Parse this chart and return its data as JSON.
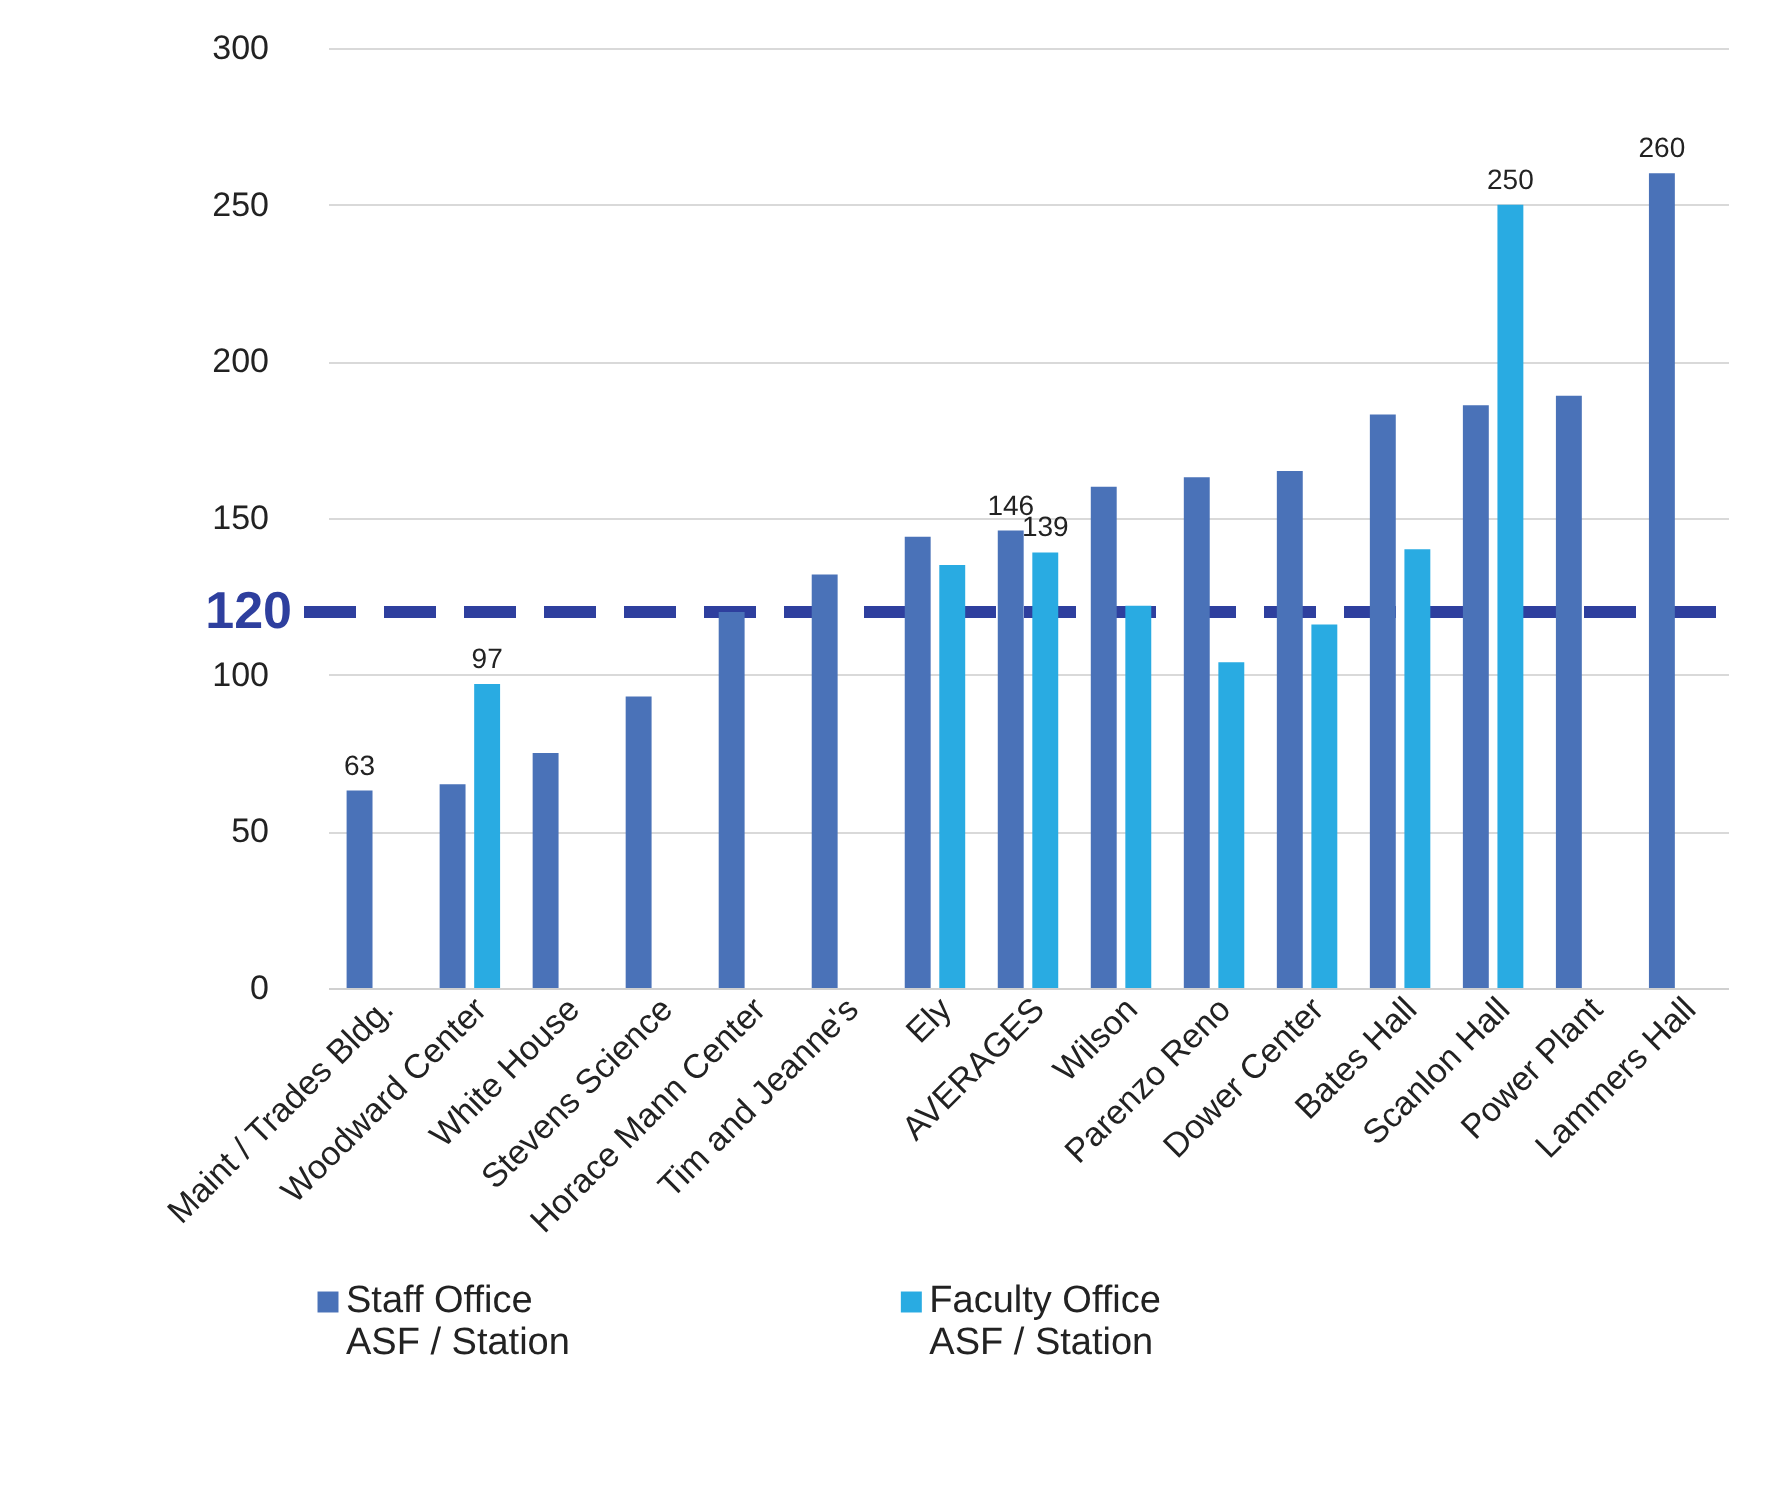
{
  "chart_data": {
    "type": "bar",
    "categories": [
      "Maint / Trades Bldg.",
      "Woodward Center",
      "White House",
      "Stevens Science",
      "Horace Mann Center",
      "Tim and Jeanne's",
      "Ely",
      "AVERAGES",
      "Wilson",
      "Parenzo Reno",
      "Dower Center",
      "Bates Hall",
      "Scanlon Hall",
      "Power Plant",
      "Lammers Hall"
    ],
    "series": [
      {
        "name": "Staff Office\nASF / Station",
        "color": "#4a72b8",
        "values": [
          63,
          65,
          75,
          93,
          120,
          132,
          144,
          146,
          160,
          163,
          165,
          183,
          186,
          189,
          260
        ],
        "value_labels": [
          "63",
          null,
          null,
          null,
          null,
          null,
          null,
          "146",
          null,
          null,
          null,
          null,
          null,
          null,
          "260"
        ]
      },
      {
        "name": "Faculty Office\nASF / Station",
        "color": "#29abe2",
        "values": [
          null,
          97,
          null,
          null,
          null,
          null,
          135,
          139,
          122,
          104,
          116,
          140,
          250,
          null,
          null
        ],
        "value_labels": [
          null,
          "97",
          null,
          null,
          null,
          null,
          null,
          "139",
          null,
          null,
          null,
          null,
          "250",
          null,
          null
        ]
      }
    ],
    "ylim": [
      0,
      300
    ],
    "yticks": [
      0,
      50,
      100,
      150,
      200,
      250,
      300
    ],
    "grid": "y",
    "legend": "bottom",
    "ref_lines": [
      {
        "axis": "y",
        "value": 120,
        "label": "120",
        "color": "#2e3f9e",
        "line_style": "dashed"
      }
    ]
  }
}
